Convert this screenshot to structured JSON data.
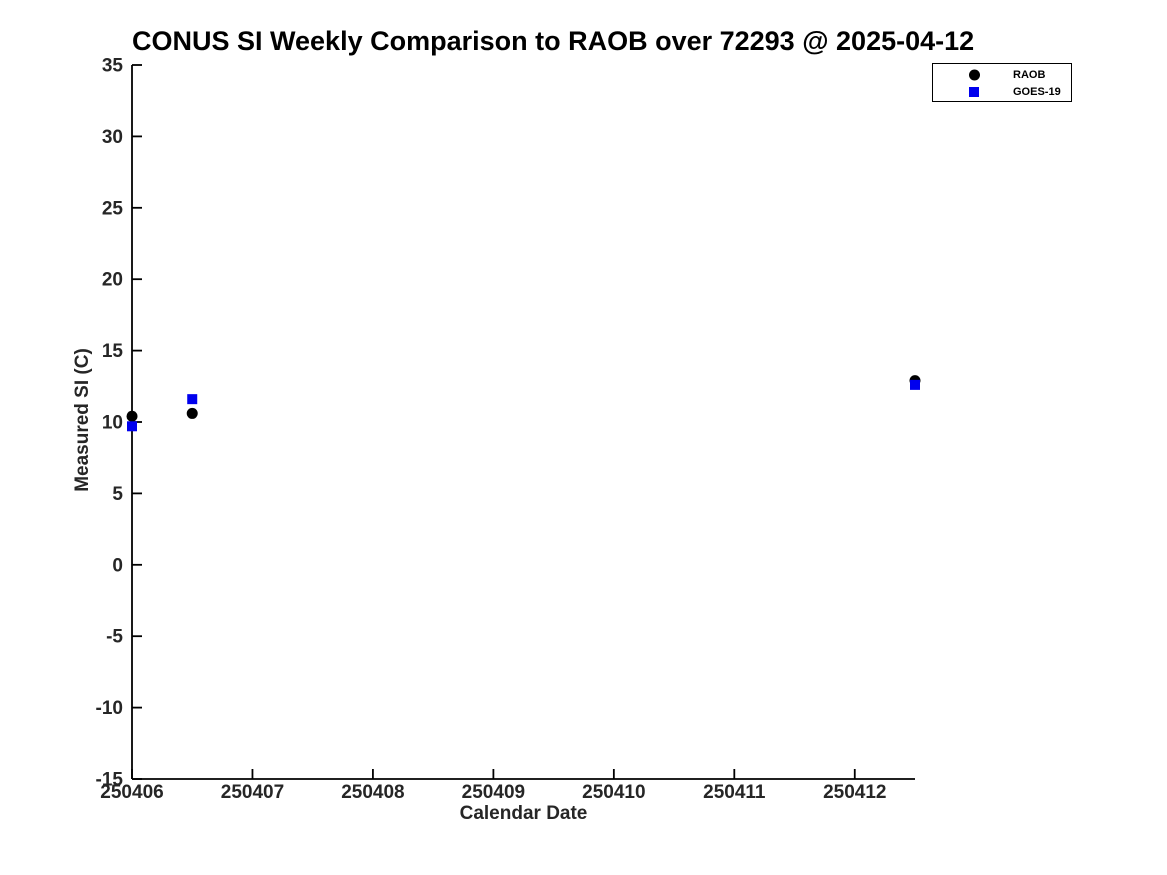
{
  "chart_data": {
    "type": "scatter",
    "title": "CONUS SI Weekly Comparison to RAOB over 72293 @ 2025-04-12",
    "xlabel": "Calendar Date",
    "ylabel": "Measured SI (C)",
    "xlim": [
      250406,
      250412.5
    ],
    "ylim": [
      -15,
      35
    ],
    "xticks": [
      250406,
      250407,
      250408,
      250409,
      250410,
      250411,
      250412
    ],
    "yticks": [
      -15,
      -10,
      -5,
      0,
      5,
      10,
      15,
      20,
      25,
      30,
      35
    ],
    "grid": false,
    "legend_position": "top-right-outside",
    "axis_color": "#000000",
    "background_color": "#ffffff",
    "series": [
      {
        "name": "RAOB",
        "marker": "circle",
        "color": "#000000",
        "x": [
          250406.0,
          250406.5,
          250412.5
        ],
        "y": [
          10.4,
          10.6,
          12.9
        ]
      },
      {
        "name": "GOES-19",
        "marker": "square",
        "color": "#0000ee",
        "x": [
          250406.0,
          250406.5,
          250412.5
        ],
        "y": [
          9.7,
          11.6,
          12.6
        ]
      }
    ]
  }
}
